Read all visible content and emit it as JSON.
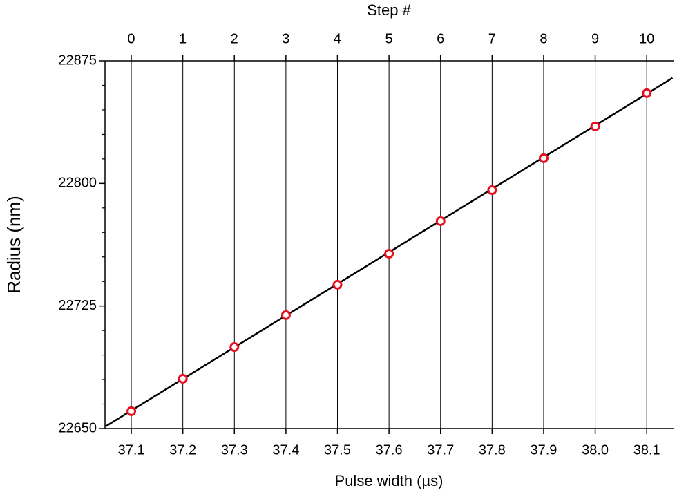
{
  "chart_data": {
    "type": "scatter",
    "xlabel": "Pulse width (µs)",
    "x2label": "Step #",
    "ylabel": "Radius (nm)",
    "x": [
      37.1,
      37.2,
      37.3,
      37.4,
      37.5,
      37.6,
      37.7,
      37.8,
      37.9,
      38,
      38.1
    ],
    "values": [
      22660.6,
      22680.5,
      22699.9,
      22719.4,
      22738.0,
      22757.0,
      22776.9,
      22795.9,
      22815.4,
      22834.9,
      22855.2
    ],
    "color": "#e8101e",
    "fit_line": {
      "x": [
        37.05,
        38.15
      ],
      "y": [
        22651.3,
        22864.5
      ],
      "color": "#000000"
    },
    "xlim": [
      37.049,
      38.152
    ],
    "xticks": [
      37.1,
      37.2,
      37.3,
      37.4,
      37.5,
      37.6,
      37.7,
      37.8,
      37.9,
      {
        "value": 38,
        "label": "38.0"
      },
      38.1
    ],
    "x2lim": [
      -0.509,
      10.52
    ],
    "x2ticks": [
      0,
      1,
      2,
      3,
      4,
      5,
      6,
      7,
      8,
      9,
      10
    ],
    "ylim": [
      22650,
      22875
    ],
    "yticks": [
      22650,
      22725,
      22800,
      22875
    ],
    "yticks_minor": [
      22665,
      22680,
      22695,
      22710,
      22740,
      22755,
      22770,
      22785,
      22815,
      22830,
      22845,
      22860
    ],
    "grid": true
  }
}
